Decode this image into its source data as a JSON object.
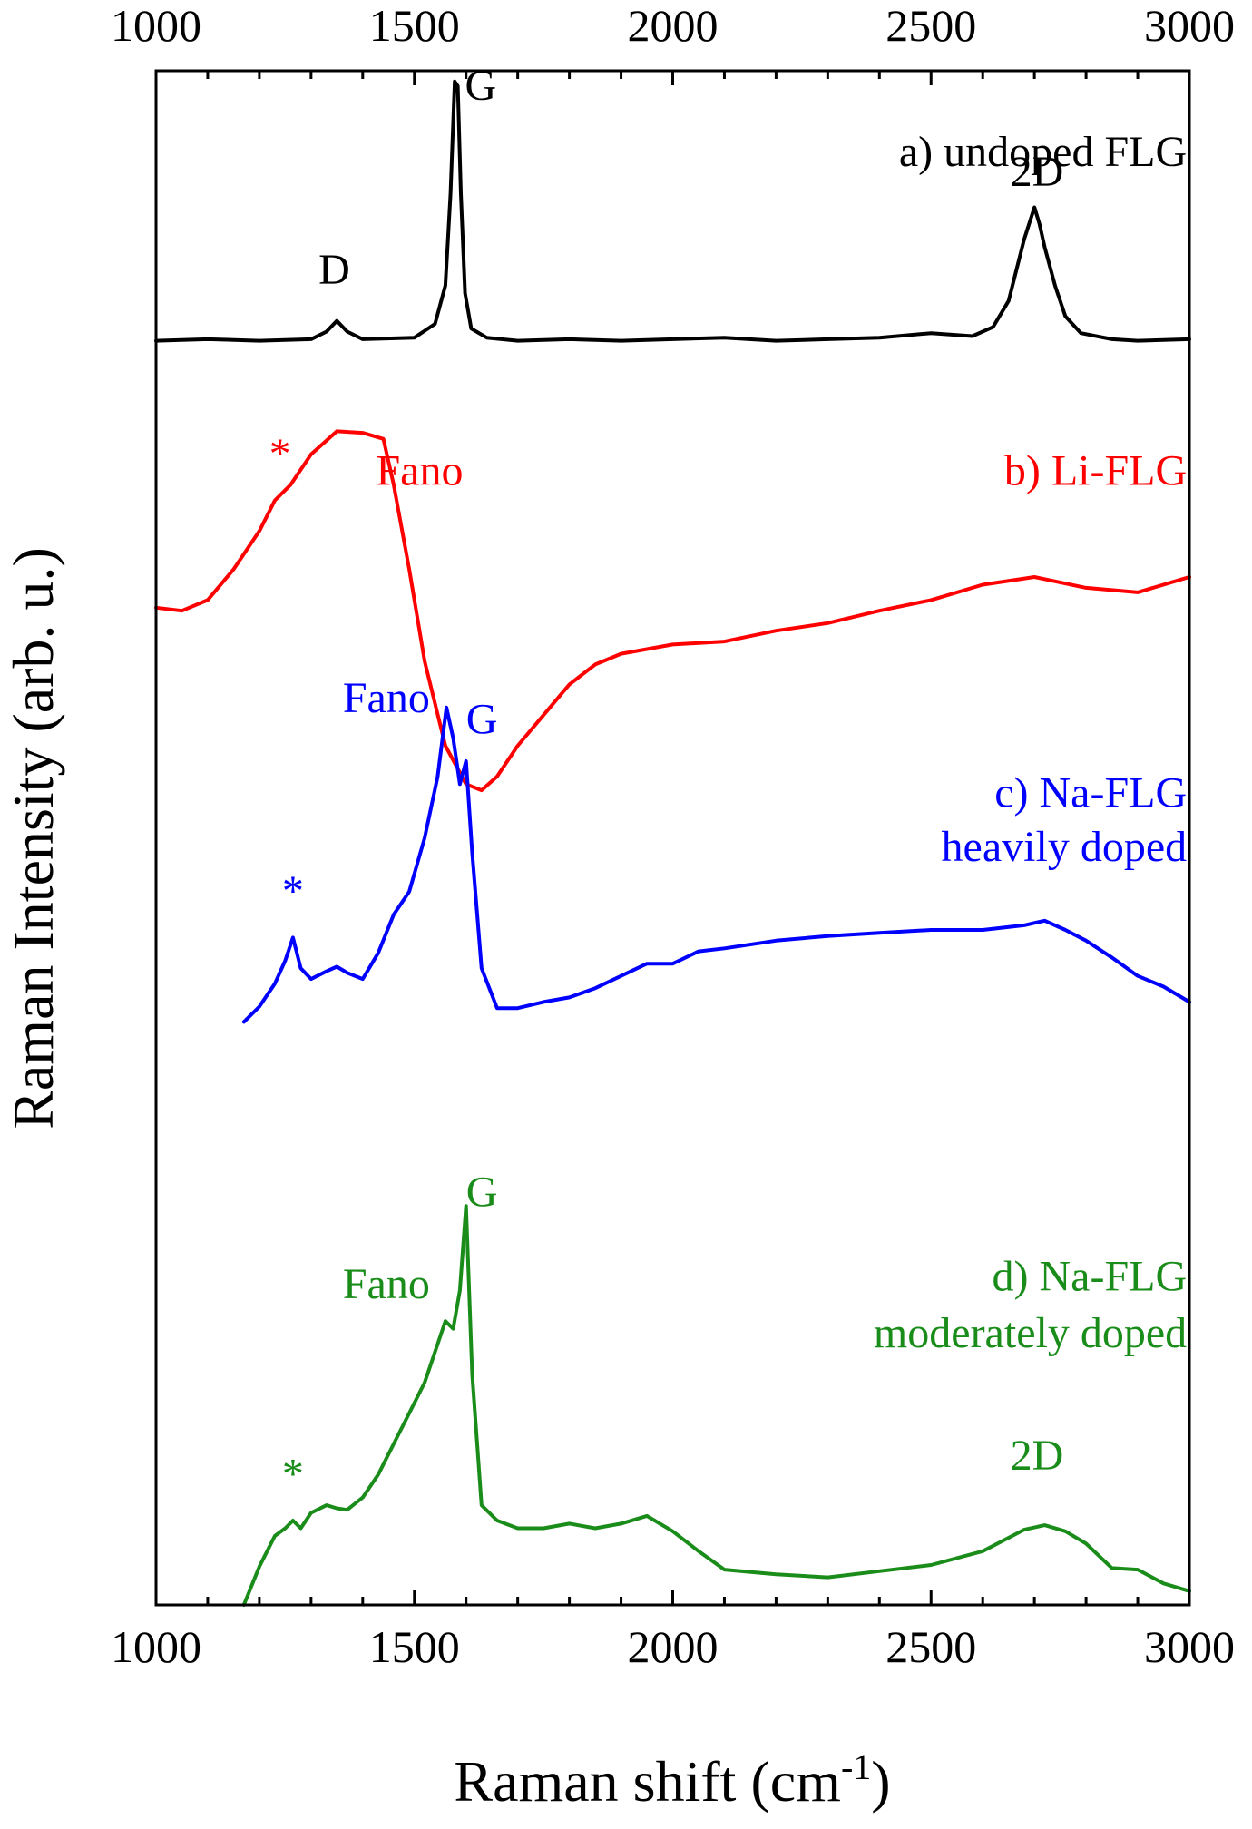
{
  "chart_data": {
    "type": "line",
    "xlabel": "Raman shift (cm",
    "xlabel_sup": "-1",
    "xlabel_end": ")",
    "ylabel": "Raman Intensity (arb. u.)",
    "xlim": [
      1000,
      3000
    ],
    "xticks": [
      1000,
      1500,
      2000,
      2500,
      3000
    ],
    "xtick_labels": [
      "1000",
      "1500",
      "2000",
      "2500",
      "3000"
    ],
    "ylim": [
      0,
      100
    ],
    "grid": false,
    "series": [
      {
        "name": "a) undoped FLG",
        "color": "#000000",
        "x": [
          1000,
          1100,
          1200,
          1300,
          1330,
          1350,
          1370,
          1400,
          1500,
          1540,
          1560,
          1570,
          1578,
          1584,
          1590,
          1598,
          1610,
          1640,
          1700,
          1800,
          1900,
          2000,
          2100,
          2200,
          2300,
          2400,
          2500,
          2580,
          2620,
          2650,
          2680,
          2700,
          2710,
          2720,
          2740,
          2760,
          2790,
          2850,
          2900,
          3000
        ],
        "y": [
          82.4,
          82.5,
          82.4,
          82.5,
          83.0,
          83.7,
          83.0,
          82.5,
          82.6,
          83.5,
          86.0,
          92.0,
          99.3,
          99.0,
          92.0,
          85.5,
          83.2,
          82.6,
          82.4,
          82.5,
          82.4,
          82.5,
          82.6,
          82.4,
          82.5,
          82.6,
          82.9,
          82.7,
          83.3,
          85.0,
          89.0,
          91.1,
          90.0,
          88.5,
          86.0,
          84.0,
          82.9,
          82.5,
          82.4,
          82.5
        ]
      },
      {
        "name": "b) Li-FLG",
        "color": "#ff0000",
        "x": [
          1000,
          1050,
          1100,
          1150,
          1200,
          1230,
          1260,
          1300,
          1350,
          1400,
          1440,
          1460,
          1490,
          1520,
          1560,
          1600,
          1630,
          1660,
          1700,
          1750,
          1800,
          1850,
          1900,
          2000,
          2100,
          2200,
          2300,
          2400,
          2500,
          2600,
          2700,
          2800,
          2900,
          3000
        ],
        "y": [
          65.0,
          64.8,
          65.5,
          67.5,
          70.0,
          72.0,
          73.0,
          75.0,
          76.5,
          76.4,
          76.0,
          73.0,
          67.5,
          61.5,
          56.0,
          53.5,
          53.1,
          54.0,
          56.0,
          58.0,
          60.0,
          61.3,
          62.0,
          62.6,
          62.8,
          63.5,
          64.0,
          64.8,
          65.5,
          66.5,
          67.0,
          66.3,
          66.0,
          67.0
        ]
      },
      {
        "name": "c) Na-FLG heavily doped",
        "color": "#0000ff",
        "x": [
          1170,
          1200,
          1230,
          1250,
          1265,
          1280,
          1300,
          1330,
          1350,
          1370,
          1400,
          1430,
          1460,
          1490,
          1520,
          1545,
          1562,
          1575,
          1588,
          1600,
          1612,
          1630,
          1660,
          1700,
          1750,
          1800,
          1850,
          1900,
          1950,
          2000,
          2050,
          2100,
          2200,
          2300,
          2400,
          2500,
          2600,
          2680,
          2720,
          2760,
          2800,
          2850,
          2900,
          2950,
          3000
        ],
        "y": [
          38.0,
          39.0,
          40.5,
          42.0,
          43.5,
          41.5,
          40.8,
          41.3,
          41.6,
          41.2,
          40.8,
          42.5,
          45.0,
          46.5,
          50.0,
          54.0,
          58.5,
          56.5,
          53.5,
          55.0,
          49.0,
          41.5,
          38.9,
          38.9,
          39.3,
          39.6,
          40.2,
          41.0,
          41.8,
          41.8,
          42.6,
          42.8,
          43.3,
          43.6,
          43.8,
          44.0,
          44.0,
          44.3,
          44.6,
          44.0,
          43.3,
          42.2,
          41.0,
          40.3,
          39.3
        ]
      },
      {
        "name": "d) Na-FLG moderately doped",
        "color": "#1a8c1a",
        "x": [
          1170,
          1200,
          1230,
          1250,
          1265,
          1280,
          1300,
          1330,
          1350,
          1370,
          1400,
          1430,
          1460,
          1490,
          1520,
          1545,
          1560,
          1575,
          1588,
          1600,
          1612,
          1630,
          1660,
          1700,
          1750,
          1800,
          1850,
          1900,
          1950,
          2000,
          2050,
          2100,
          2200,
          2300,
          2400,
          2500,
          2600,
          2680,
          2720,
          2760,
          2800,
          2850,
          2900,
          2950,
          3000
        ],
        "y": [
          0.0,
          2.5,
          4.5,
          5.0,
          5.5,
          5.0,
          6.0,
          6.5,
          6.3,
          6.2,
          7.0,
          8.5,
          10.5,
          12.5,
          14.5,
          17.0,
          18.5,
          18.0,
          20.5,
          26.0,
          15.0,
          6.5,
          5.5,
          5.0,
          5.0,
          5.3,
          5.0,
          5.3,
          5.8,
          4.8,
          3.5,
          2.3,
          2.0,
          1.8,
          2.2,
          2.6,
          3.5,
          4.9,
          5.2,
          4.8,
          4.0,
          2.4,
          2.3,
          1.4,
          0.9
        ]
      }
    ],
    "annotations": [
      {
        "text": "a) undoped FLG",
        "x": 2995,
        "y": 93.8,
        "anchor": "end",
        "color": "#000000"
      },
      {
        "text": "G",
        "x": 1598,
        "y": 98.1,
        "anchor": "start",
        "color": "#000000"
      },
      {
        "text": "D",
        "x": 1345,
        "y": 86.1,
        "anchor": "middle",
        "color": "#000000"
      },
      {
        "text": "2D",
        "x": 2705,
        "y": 92.5,
        "anchor": "middle",
        "color": "#000000"
      },
      {
        "text": "*",
        "x": 1240,
        "y": 74.1,
        "anchor": "middle",
        "color": "#ff0000"
      },
      {
        "text": "Fano",
        "x": 1510,
        "y": 73.0,
        "anchor": "middle",
        "color": "#ff0000"
      },
      {
        "text": "b) Li-FLG",
        "x": 2995,
        "y": 73.0,
        "anchor": "end",
        "color": "#ff0000"
      },
      {
        "text": "Fano",
        "x": 1530,
        "y": 58.2,
        "anchor": "end",
        "color": "#0000ff"
      },
      {
        "text": "G",
        "x": 1600,
        "y": 56.8,
        "anchor": "start",
        "color": "#0000ff"
      },
      {
        "text": "c) Na-FLG",
        "x": 2995,
        "y": 52.0,
        "anchor": "end",
        "color": "#0000ff"
      },
      {
        "text": "heavily doped",
        "x": 2995,
        "y": 48.5,
        "anchor": "end",
        "color": "#0000ff"
      },
      {
        "text": "*",
        "x": 1265,
        "y": 45.6,
        "anchor": "middle",
        "color": "#0000ff"
      },
      {
        "text": "G",
        "x": 1600,
        "y": 26.0,
        "anchor": "start",
        "color": "#1a8c1a"
      },
      {
        "text": "Fano",
        "x": 1530,
        "y": 20.0,
        "anchor": "end",
        "color": "#1a8c1a"
      },
      {
        "text": "d) Na-FLG",
        "x": 2995,
        "y": 20.5,
        "anchor": "end",
        "color": "#1a8c1a"
      },
      {
        "text": "moderately doped",
        "x": 2995,
        "y": 16.8,
        "anchor": "end",
        "color": "#1a8c1a"
      },
      {
        "text": "*",
        "x": 1265,
        "y": 7.6,
        "anchor": "middle",
        "color": "#1a8c1a"
      },
      {
        "text": "2D",
        "x": 2705,
        "y": 8.8,
        "anchor": "middle",
        "color": "#1a8c1a"
      }
    ]
  }
}
